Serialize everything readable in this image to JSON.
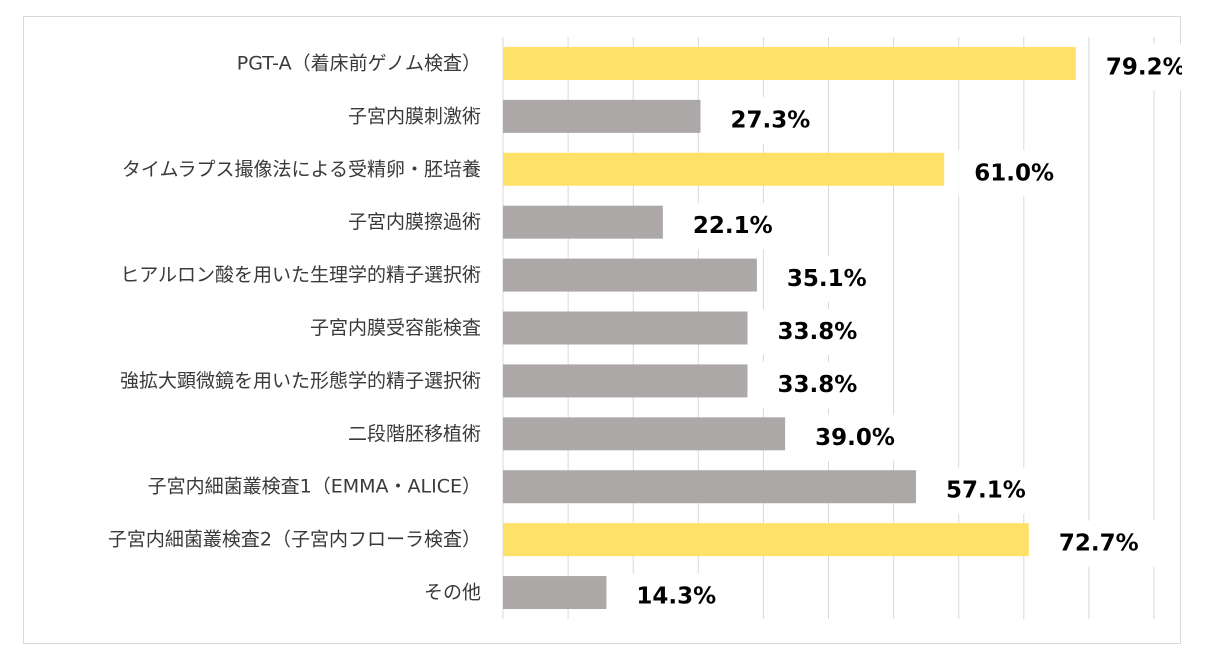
{
  "chart_data": {
    "type": "bar",
    "orientation": "horizontal",
    "categories": [
      "PGT-A（着床前ゲノム検査）",
      "子宮内膜刺激術",
      "タイムラプス撮像法による受精卵・胚培養",
      "子宮内膜擦過術",
      "ヒアルロン酸を用いた生理学的精子選択術",
      "子宮内膜受容能検査",
      "強拡大顕微鏡を用いた形態学的精子選択術",
      "二段階胚移植術",
      "子宮内細菌叢検査1（EMMA・ALICE）",
      "子宮内細菌叢検査2（子宮内フローラ検査）",
      "その他"
    ],
    "values": [
      79.2,
      27.3,
      61.0,
      22.1,
      35.1,
      33.8,
      33.8,
      39.0,
      57.1,
      72.7,
      14.3
    ],
    "value_labels": [
      "79.2%",
      "27.3%",
      "61.0%",
      "22.1%",
      "35.1%",
      "33.8%",
      "33.8%",
      "39.0%",
      "57.1%",
      "72.7%",
      "14.3%"
    ],
    "highlighted": [
      true,
      false,
      true,
      false,
      false,
      false,
      false,
      false,
      false,
      true,
      false
    ],
    "xlim": [
      0,
      90
    ],
    "grid": true,
    "gridline_count": 10,
    "legend": false,
    "title": "",
    "xlabel": "",
    "ylabel": ""
  },
  "colors": {
    "highlight_bar": "#FFE16A",
    "normal_bar": "#ACA8A8",
    "grid": "#D9D9D9",
    "frame": "#D9D9D9"
  }
}
